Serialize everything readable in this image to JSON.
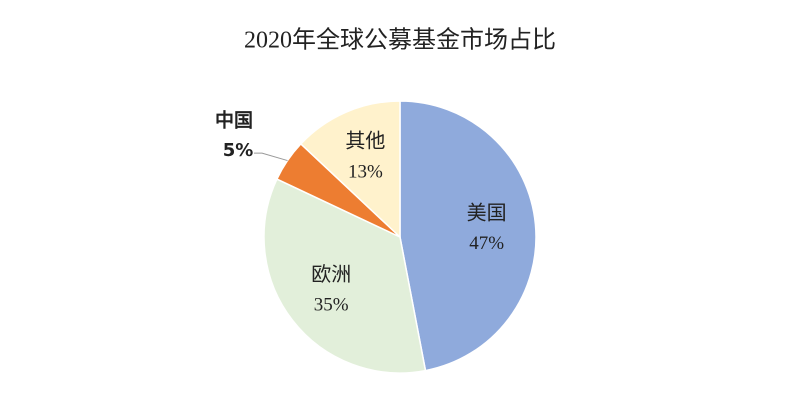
{
  "chart_data": {
    "type": "pie",
    "title": "2020年全球公募基金市场占比",
    "categories": [
      "美国",
      "欧洲",
      "中国",
      "其他"
    ],
    "values": [
      47,
      35,
      5,
      13
    ],
    "value_labels": [
      "47%",
      "35%",
      "5%",
      "13%"
    ],
    "colors": [
      "#8faadc",
      "#e2efda",
      "#ed7d31",
      "#fff2cc"
    ]
  }
}
